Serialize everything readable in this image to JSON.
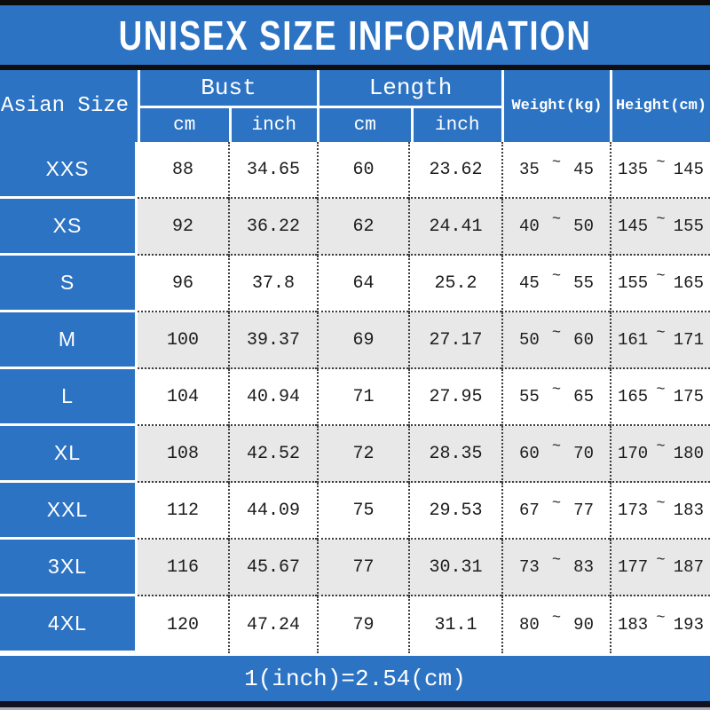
{
  "title": "UNISEX SIZE INFORMATION",
  "ui": {
    "tilde": "~"
  },
  "colors": {
    "blue": "#2d73c3",
    "row-alt": "#e8e8e8",
    "text-dark": "#1c1c1c",
    "dot": "#3c3c3c",
    "bottom-edge": "#a9aeb6"
  },
  "chart_data": {
    "type": "table",
    "title": "UNISEX SIZE INFORMATION",
    "note": "1(inch)=2.54(cm)",
    "columns": [
      "Asian Size",
      "Bust (cm)",
      "Bust (inch)",
      "Length (cm)",
      "Length (inch)",
      "Weight(kg)",
      "Height(cm)"
    ],
    "header": {
      "size_label": "Asian Size",
      "groups": [
        {
          "label": "Bust",
          "sub": [
            "cm",
            "inch"
          ]
        },
        {
          "label": "Length",
          "sub": [
            "cm",
            "inch"
          ]
        }
      ],
      "weight_label": "Weight(kg)",
      "height_label": "Height(cm)"
    },
    "rows": [
      {
        "size": "XXS",
        "bust_cm": "88",
        "bust_inch": "34.65",
        "length_cm": "60",
        "length_inch": "23.62",
        "weight_min": "35",
        "weight_max": "45",
        "height_min": "135",
        "height_max": "145"
      },
      {
        "size": "XS",
        "bust_cm": "92",
        "bust_inch": "36.22",
        "length_cm": "62",
        "length_inch": "24.41",
        "weight_min": "40",
        "weight_max": "50",
        "height_min": "145",
        "height_max": "155"
      },
      {
        "size": "S",
        "bust_cm": "96",
        "bust_inch": "37.8",
        "length_cm": "64",
        "length_inch": "25.2",
        "weight_min": "45",
        "weight_max": "55",
        "height_min": "155",
        "height_max": "165"
      },
      {
        "size": "M",
        "bust_cm": "100",
        "bust_inch": "39.37",
        "length_cm": "69",
        "length_inch": "27.17",
        "weight_min": "50",
        "weight_max": "60",
        "height_min": "161",
        "height_max": "171"
      },
      {
        "size": "L",
        "bust_cm": "104",
        "bust_inch": "40.94",
        "length_cm": "71",
        "length_inch": "27.95",
        "weight_min": "55",
        "weight_max": "65",
        "height_min": "165",
        "height_max": "175"
      },
      {
        "size": "XL",
        "bust_cm": "108",
        "bust_inch": "42.52",
        "length_cm": "72",
        "length_inch": "28.35",
        "weight_min": "60",
        "weight_max": "70",
        "height_min": "170",
        "height_max": "180"
      },
      {
        "size": "XXL",
        "bust_cm": "112",
        "bust_inch": "44.09",
        "length_cm": "75",
        "length_inch": "29.53",
        "weight_min": "67",
        "weight_max": "77",
        "height_min": "173",
        "height_max": "183"
      },
      {
        "size": "3XL",
        "bust_cm": "116",
        "bust_inch": "45.67",
        "length_cm": "77",
        "length_inch": "30.31",
        "weight_min": "73",
        "weight_max": "83",
        "height_min": "177",
        "height_max": "187"
      },
      {
        "size": "4XL",
        "bust_cm": "120",
        "bust_inch": "47.24",
        "length_cm": "79",
        "length_inch": "31.1",
        "weight_min": "80",
        "weight_max": "90",
        "height_min": "183",
        "height_max": "193"
      }
    ]
  }
}
